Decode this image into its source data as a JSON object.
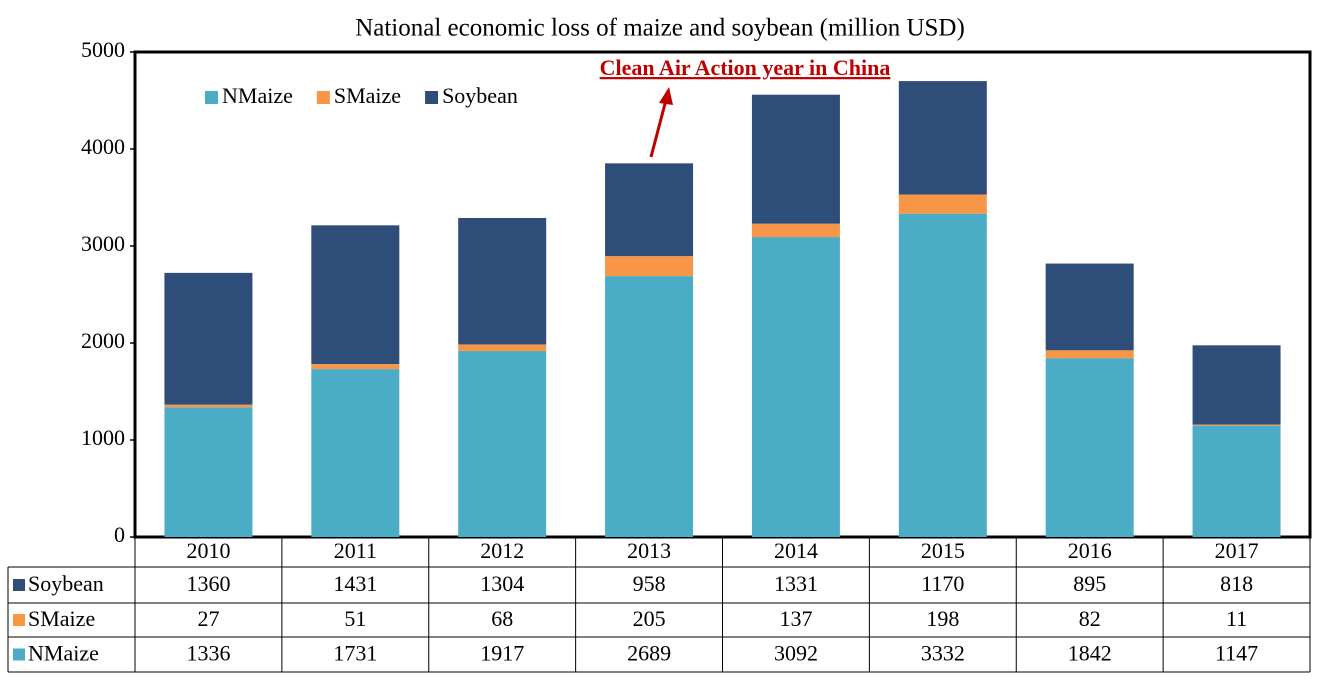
{
  "chart_data": {
    "type": "stacked_bar",
    "title": "National economic loss of maize and soybean (million USD)",
    "annotation": "Clean Air Action year in China",
    "categories": [
      "2010",
      "2011",
      "2012",
      "2013",
      "2014",
      "2015",
      "2016",
      "2017"
    ],
    "series": [
      {
        "name": "NMaize",
        "color": "#4bacc6",
        "values": [
          1336,
          1731,
          1917,
          2689,
          3092,
          3332,
          1842,
          1147
        ]
      },
      {
        "name": "SMaize",
        "color": "#f79646",
        "values": [
          27,
          51,
          68,
          205,
          137,
          198,
          82,
          11
        ]
      },
      {
        "name": "Soybean",
        "color": "#2e4d78",
        "values": [
          1360,
          1431,
          1304,
          958,
          1331,
          1170,
          895,
          818
        ]
      }
    ],
    "ylim": [
      0,
      5000
    ],
    "yticks": [
      0,
      1000,
      2000,
      3000,
      4000,
      5000
    ],
    "grid": false
  }
}
